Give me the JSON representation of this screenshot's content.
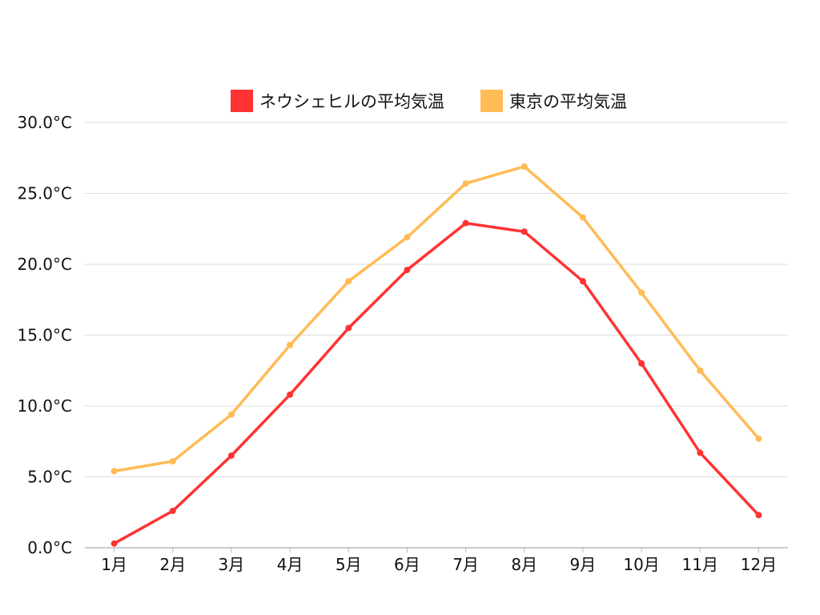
{
  "chart_data": {
    "type": "line",
    "categories": [
      "1月",
      "2月",
      "3月",
      "4月",
      "5月",
      "6月",
      "7月",
      "8月",
      "9月",
      "10月",
      "11月",
      "12月"
    ],
    "series": [
      {
        "name": "ネウシェヒルの平均気温",
        "color": "#ff3333",
        "values": [
          0.3,
          2.6,
          6.5,
          10.8,
          15.5,
          19.6,
          22.9,
          22.3,
          18.8,
          13.0,
          6.7,
          2.3
        ]
      },
      {
        "name": "東京の平均気温",
        "color": "#ffbb55",
        "values": [
          5.4,
          6.1,
          9.4,
          14.3,
          18.8,
          21.9,
          25.7,
          26.9,
          23.3,
          18.0,
          12.5,
          7.7
        ]
      }
    ],
    "y_ticks": [
      "0.0°C",
      "5.0°C",
      "10.0°C",
      "15.0°C",
      "20.0°C",
      "25.0°C",
      "30.0°C"
    ],
    "ylim": [
      0,
      30
    ],
    "grid": true,
    "legend_position": "top-center"
  }
}
